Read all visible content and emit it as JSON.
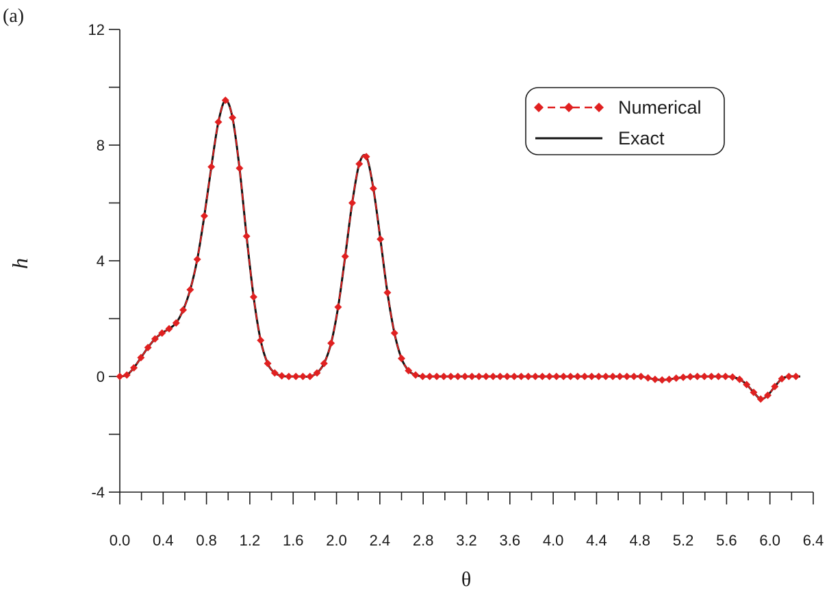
{
  "chart_data": {
    "type": "line",
    "panel_label": "(a)",
    "xlabel": "θ",
    "ylabel": "h",
    "xlim": [
      0,
      6.4
    ],
    "ylim": [
      -4,
      12
    ],
    "x_ticks": [
      "0.0",
      "0.4",
      "0.8",
      "1.2",
      "1.6",
      "2.0",
      "2.4",
      "2.8",
      "3.2",
      "3.6",
      "4.0",
      "4.4",
      "4.8",
      "5.2",
      "5.6",
      "6.0",
      "6.4"
    ],
    "y_ticks": [
      "-4",
      "0",
      "4",
      "8",
      "12"
    ],
    "legend_position": "top-right",
    "grid": false,
    "series": [
      {
        "name": "Numerical",
        "style": "dashed-diamond",
        "color": "#e02020",
        "x": [
          0.0,
          0.065,
          0.13,
          0.195,
          0.26,
          0.325,
          0.39,
          0.455,
          0.52,
          0.585,
          0.65,
          0.715,
          0.78,
          0.845,
          0.91,
          0.975,
          1.04,
          1.105,
          1.17,
          1.235,
          1.3,
          1.365,
          1.43,
          1.495,
          1.56,
          1.625,
          1.69,
          1.755,
          1.82,
          1.885,
          1.95,
          2.015,
          2.08,
          2.145,
          2.21,
          2.275,
          2.34,
          2.405,
          2.47,
          2.535,
          2.6,
          2.665,
          2.73,
          2.795,
          2.86,
          2.925,
          2.99,
          3.055,
          3.12,
          3.185,
          3.25,
          3.315,
          3.38,
          3.445,
          3.51,
          3.575,
          3.64,
          3.705,
          3.77,
          3.835,
          3.9,
          3.965,
          4.03,
          4.095,
          4.16,
          4.225,
          4.29,
          4.355,
          4.42,
          4.485,
          4.55,
          4.615,
          4.68,
          4.745,
          4.81,
          4.875,
          4.94,
          5.005,
          5.07,
          5.135,
          5.2,
          5.265,
          5.33,
          5.395,
          5.46,
          5.525,
          5.59,
          5.655,
          5.72,
          5.785,
          5.85,
          5.915,
          5.98,
          6.045,
          6.11,
          6.175,
          6.24
        ],
        "y": [
          0.0,
          0.05,
          0.3,
          0.65,
          1.0,
          1.3,
          1.5,
          1.65,
          1.85,
          2.3,
          3.0,
          4.05,
          5.55,
          7.25,
          8.8,
          9.55,
          8.95,
          7.2,
          4.85,
          2.75,
          1.25,
          0.45,
          0.12,
          0.02,
          0.0,
          0.0,
          0.0,
          0.0,
          0.12,
          0.45,
          1.15,
          2.4,
          4.15,
          6.0,
          7.35,
          7.6,
          6.5,
          4.75,
          2.9,
          1.5,
          0.62,
          0.2,
          0.05,
          0.0,
          0.0,
          0.0,
          0.0,
          0.0,
          0.0,
          0.0,
          0.0,
          0.0,
          0.0,
          0.0,
          0.0,
          0.0,
          0.0,
          0.0,
          0.0,
          0.0,
          0.0,
          0.0,
          0.0,
          0.0,
          0.0,
          0.0,
          0.0,
          0.0,
          0.0,
          0.0,
          0.0,
          0.0,
          0.0,
          0.0,
          0.0,
          -0.05,
          -0.1,
          -0.12,
          -0.1,
          -0.06,
          -0.03,
          -0.01,
          0.0,
          0.0,
          0.0,
          0.0,
          0.0,
          -0.02,
          -0.1,
          -0.28,
          -0.55,
          -0.78,
          -0.65,
          -0.35,
          -0.08,
          0.0,
          0.0
        ]
      },
      {
        "name": "Exact",
        "style": "solid",
        "color": "#111111",
        "x": [
          0.0,
          0.065,
          0.13,
          0.195,
          0.26,
          0.325,
          0.39,
          0.455,
          0.52,
          0.585,
          0.65,
          0.715,
          0.78,
          0.845,
          0.91,
          0.975,
          1.04,
          1.105,
          1.17,
          1.235,
          1.3,
          1.365,
          1.43,
          1.495,
          1.56,
          1.625,
          1.69,
          1.755,
          1.82,
          1.885,
          1.95,
          2.015,
          2.08,
          2.145,
          2.21,
          2.275,
          2.34,
          2.405,
          2.47,
          2.535,
          2.6,
          2.665,
          2.73,
          2.795,
          2.86,
          2.925,
          2.99,
          3.055,
          3.12,
          3.185,
          3.25,
          3.315,
          3.38,
          3.445,
          3.51,
          3.575,
          3.64,
          3.705,
          3.77,
          3.835,
          3.9,
          3.965,
          4.03,
          4.095,
          4.16,
          4.225,
          4.29,
          4.355,
          4.42,
          4.485,
          4.55,
          4.615,
          4.68,
          4.745,
          4.81,
          4.875,
          4.94,
          5.005,
          5.07,
          5.135,
          5.2,
          5.265,
          5.33,
          5.395,
          5.46,
          5.525,
          5.59,
          5.655,
          5.72,
          5.785,
          5.85,
          5.915,
          5.98,
          6.045,
          6.11,
          6.175,
          6.24,
          6.28
        ],
        "y": [
          0.0,
          0.05,
          0.3,
          0.65,
          1.0,
          1.3,
          1.5,
          1.65,
          1.85,
          2.3,
          3.0,
          4.05,
          5.55,
          7.25,
          8.8,
          9.55,
          8.95,
          7.2,
          4.85,
          2.75,
          1.25,
          0.45,
          0.12,
          0.02,
          0.0,
          0.0,
          0.0,
          0.0,
          0.12,
          0.45,
          1.15,
          2.4,
          4.15,
          6.0,
          7.35,
          7.6,
          6.5,
          4.75,
          2.9,
          1.5,
          0.62,
          0.2,
          0.05,
          0.0,
          0.0,
          0.0,
          0.0,
          0.0,
          0.0,
          0.0,
          0.0,
          0.0,
          0.0,
          0.0,
          0.0,
          0.0,
          0.0,
          0.0,
          0.0,
          0.0,
          0.0,
          0.0,
          0.0,
          0.0,
          0.0,
          0.0,
          0.0,
          0.0,
          0.0,
          0.0,
          0.0,
          0.0,
          0.0,
          0.0,
          0.0,
          -0.05,
          -0.1,
          -0.12,
          -0.1,
          -0.06,
          -0.03,
          -0.01,
          0.0,
          0.0,
          0.0,
          0.0,
          0.0,
          -0.02,
          -0.1,
          -0.28,
          -0.55,
          -0.78,
          -0.65,
          -0.35,
          -0.08,
          0.0,
          0.0,
          0.0
        ]
      }
    ]
  }
}
